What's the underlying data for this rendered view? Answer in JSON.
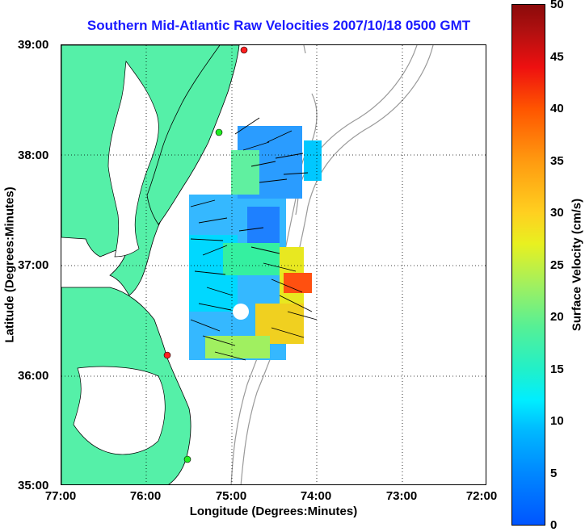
{
  "title": "Southern Mid-Atlantic Raw Velocities 2007/10/18 0500 GMT",
  "axes": {
    "xlabel": "Longitude (Degrees:Minutes)",
    "ylabel": "Latitude (Degrees:Minutes)",
    "xticks": [
      "77:00",
      "76:00",
      "75:00",
      "74:00",
      "73:00",
      "72:00"
    ],
    "yticks": [
      "39:00",
      "38:00",
      "37:00",
      "36:00",
      "35:00"
    ],
    "grid": "dotted"
  },
  "colorbar": {
    "label": "Surface Velocity (cm/s)",
    "ticks": [
      "50",
      "45",
      "40",
      "35",
      "30",
      "25",
      "20",
      "15",
      "10",
      "5",
      "0"
    ],
    "range": [
      0,
      50
    ],
    "colormap": "jet"
  },
  "colors": {
    "land": "#55f0a8",
    "title": "#1a1aff",
    "bathymetry": "#999999"
  },
  "markers": [
    {
      "name": "site-red-north",
      "color": "#ff2020"
    },
    {
      "name": "site-green-north",
      "color": "#22ee22"
    },
    {
      "name": "site-red-south",
      "color": "#ff2020"
    },
    {
      "name": "site-green-south",
      "color": "#22ee22"
    }
  ]
}
